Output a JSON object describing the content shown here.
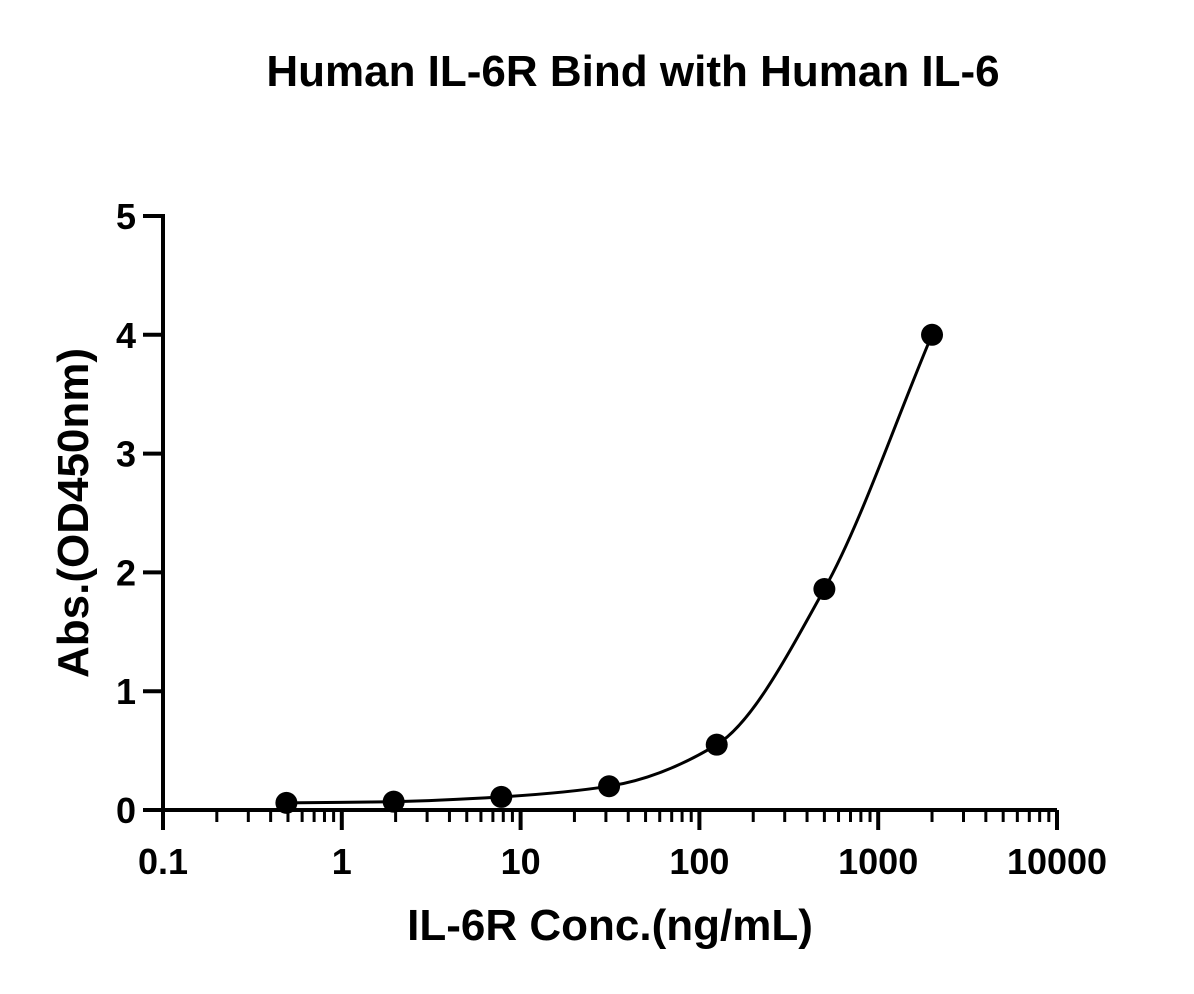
{
  "chart_data": {
    "type": "scatter",
    "title": "Human IL-6R Bind with Human IL-6",
    "xlabel": "IL-6R Conc.(ng/mL)",
    "ylabel": "Abs.(OD450nm)",
    "x_scale": "log",
    "xlim": [
      0.1,
      10000
    ],
    "ylim": [
      0,
      5
    ],
    "x_ticks": [
      "0.1",
      "1",
      "10",
      "100",
      "1000",
      "10000"
    ],
    "y_ticks": [
      "0",
      "1",
      "2",
      "3",
      "4",
      "5"
    ],
    "grid": false,
    "legend": "none",
    "series": [
      {
        "x": [
          0.49,
          1.95,
          7.8,
          31.25,
          125,
          500,
          2000
        ],
        "y": [
          0.06,
          0.07,
          0.11,
          0.2,
          0.55,
          1.86,
          4.0
        ],
        "color": "#000000",
        "marker": "circle"
      }
    ],
    "fit_curve": {
      "model": "4PL",
      "color": "#000000"
    }
  }
}
